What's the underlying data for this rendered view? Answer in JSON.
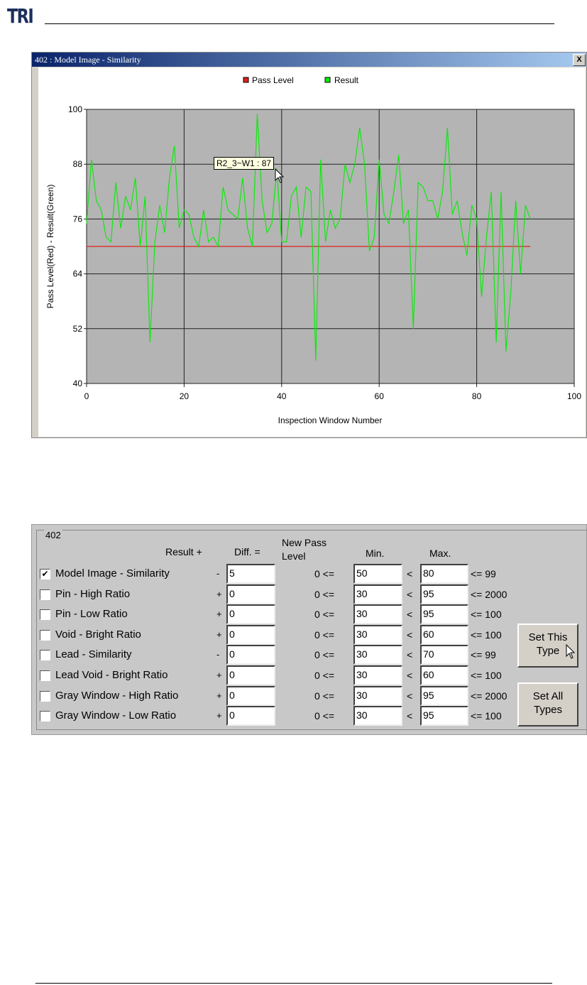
{
  "logo": "TRI",
  "window": {
    "title": "402 : Model Image - Similarity",
    "close": "X",
    "tooltip": "R2_3~W1 : 87"
  },
  "chart_data": {
    "type": "line",
    "title": "",
    "xlabel": "Inspection Window Number",
    "ylabel": "Pass Level(Red) - Result(Green)",
    "xlim": [
      0,
      100
    ],
    "ylim": [
      40,
      100
    ],
    "xticks": [
      0,
      20,
      40,
      60,
      80,
      100
    ],
    "yticks": [
      40,
      52,
      64,
      76,
      88,
      100
    ],
    "grid": true,
    "legend_position": "top-center",
    "legend": [
      "Pass Level",
      "Result"
    ],
    "colors": {
      "pass": "#e02020",
      "result": "#00ee00",
      "plot_bg": "#b4b4b4"
    },
    "series": [
      {
        "name": "Pass Level",
        "x": [
          0,
          91
        ],
        "values": [
          70,
          70
        ]
      },
      {
        "name": "Result",
        "x_start": 0,
        "values": [
          75,
          89,
          80,
          78,
          72,
          71,
          84,
          74,
          81,
          78,
          85,
          70,
          81,
          49,
          71,
          79,
          73,
          85,
          92,
          74,
          78,
          77,
          72,
          70,
          78,
          71,
          72,
          70,
          83,
          78,
          77,
          76,
          85,
          74,
          70,
          99,
          80,
          73,
          75,
          87,
          71,
          71,
          81,
          83,
          72,
          83,
          82,
          45,
          89,
          71,
          78,
          74,
          76,
          88,
          84,
          88,
          96,
          88,
          69,
          72,
          89,
          77,
          75,
          82,
          90,
          75,
          78,
          52,
          84,
          83,
          80,
          80,
          76,
          82,
          96,
          77,
          80,
          73,
          68,
          79,
          76,
          59,
          72,
          82,
          49,
          82,
          47,
          60,
          80,
          64,
          79,
          76
        ]
      }
    ]
  },
  "panel": {
    "group": "402",
    "headers": {
      "result": "Result  +",
      "diff": "Diff.  =",
      "newpass1": "New Pass",
      "newpass2": "Level",
      "min": "Min.",
      "max": "Max."
    },
    "rows": [
      {
        "checked": true,
        "check": "✔",
        "label": "Model Image - Similarity",
        "sign": "-",
        "diff": "5",
        "lo": "0 <=",
        "min": "50",
        "lt": "<",
        "max": "80",
        "limit": "<= 99"
      },
      {
        "checked": false,
        "check": "",
        "label": "Pin - High Ratio",
        "sign": "+",
        "diff": "0",
        "lo": "0 <=",
        "min": "30",
        "lt": "<",
        "max": "95",
        "limit": "<= 2000"
      },
      {
        "checked": false,
        "check": "",
        "label": "Pin - Low Ratio",
        "sign": "+",
        "diff": "0",
        "lo": "0 <=",
        "min": "30",
        "lt": "<",
        "max": "95",
        "limit": "<= 100"
      },
      {
        "checked": false,
        "check": "",
        "label": "Void - Bright Ratio",
        "sign": "+",
        "diff": "0",
        "lo": "0 <=",
        "min": "30",
        "lt": "<",
        "max": "60",
        "limit": "<= 100"
      },
      {
        "checked": false,
        "check": "",
        "label": "Lead - Similarity",
        "sign": "-",
        "diff": "0",
        "lo": "0 <=",
        "min": "30",
        "lt": "<",
        "max": "70",
        "limit": "<= 99"
      },
      {
        "checked": false,
        "check": "",
        "label": "Lead Void - Bright Ratio",
        "sign": "+",
        "diff": "0",
        "lo": "0 <=",
        "min": "30",
        "lt": "<",
        "max": "60",
        "limit": "<= 100"
      },
      {
        "checked": false,
        "check": "",
        "label": "Gray Window - High Ratio",
        "sign": "+",
        "diff": "0",
        "lo": "0 <=",
        "min": "30",
        "lt": "<",
        "max": "95",
        "limit": "<= 2000"
      },
      {
        "checked": false,
        "check": "",
        "label": "Gray Window - Low Ratio",
        "sign": "+",
        "diff": "0",
        "lo": "0 <=",
        "min": "30",
        "lt": "<",
        "max": "95",
        "limit": "<= 100"
      }
    ],
    "buttons": {
      "set_this_1": "Set This",
      "set_this_2": "Type",
      "set_all_1": "Set All",
      "set_all_2": "Types"
    }
  }
}
